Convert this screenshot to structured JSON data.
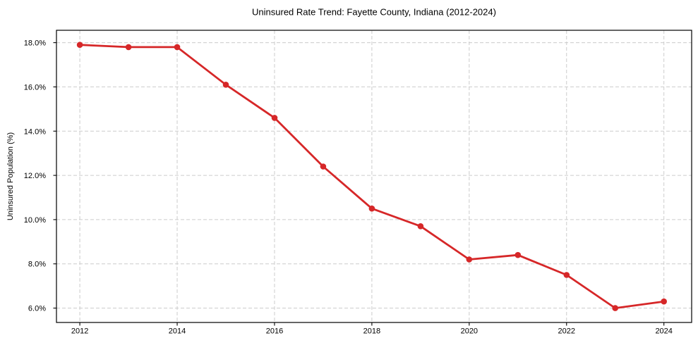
{
  "chart_data": {
    "type": "line",
    "title": "Uninsured Rate Trend: Fayette County, Indiana (2012-2024)",
    "xlabel": "",
    "ylabel": "Uninsured Population (%)",
    "x": [
      2012,
      2013,
      2014,
      2015,
      2016,
      2017,
      2018,
      2019,
      2020,
      2021,
      2022,
      2023,
      2024
    ],
    "series": [
      {
        "name": "Uninsured rate",
        "color": "#d62728",
        "marker": "circle",
        "values": [
          17.9,
          17.8,
          17.8,
          16.1,
          14.6,
          12.4,
          10.5,
          9.7,
          8.2,
          8.4,
          7.5,
          6.0,
          6.3
        ]
      }
    ],
    "x_ticks": {
      "positions": [
        2012,
        2014,
        2016,
        2018,
        2020,
        2022,
        2024
      ],
      "labels": [
        "2012",
        "2014",
        "2016",
        "2018",
        "2020",
        "2022",
        "2024"
      ]
    },
    "y_ticks": {
      "positions": [
        6,
        8,
        10,
        12,
        14,
        16,
        18
      ],
      "labels": [
        "6.0%",
        "8.0%",
        "10.0%",
        "12.0%",
        "14.0%",
        "16.0%",
        "18.0%"
      ]
    },
    "xlim": [
      2011.52,
      2024.57
    ],
    "ylim": [
      5.35,
      18.56
    ],
    "grid": true,
    "grid_style": "dashed",
    "legend": "none"
  },
  "colors": {
    "line": "#d62728",
    "grid": "#cccccc",
    "frame": "#000000",
    "text": "#000000",
    "background": "#ffffff"
  }
}
